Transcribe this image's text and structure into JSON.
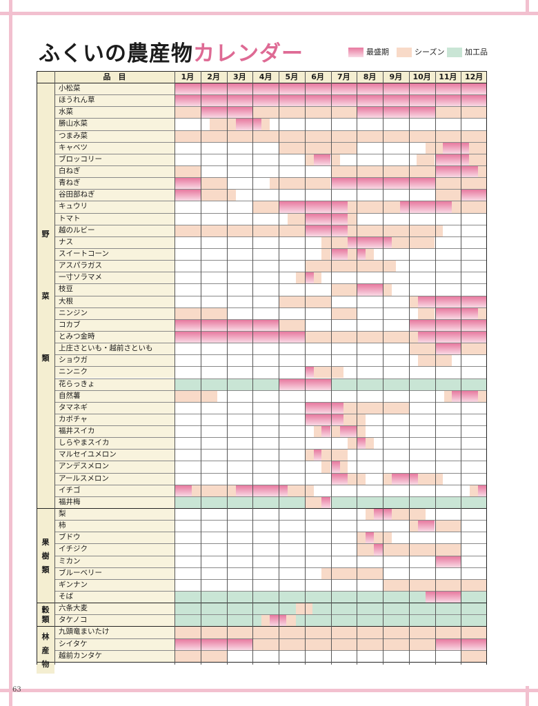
{
  "title": {
    "main": "ふくいの農産物",
    "accent": "カレンダー"
  },
  "legend": [
    {
      "label": "最盛期",
      "kind": "peak"
    },
    {
      "label": "シーズン",
      "kind": "season"
    },
    {
      "label": "加工品",
      "kind": "proc"
    }
  ],
  "header": {
    "item": "品　目",
    "months": [
      "1月",
      "2月",
      "3月",
      "4月",
      "5月",
      "6月",
      "7月",
      "8月",
      "9月",
      "10月",
      "11月",
      "12月"
    ]
  },
  "categories": [
    {
      "label": "野菜類",
      "chars": [
        "野",
        "菜",
        "類"
      ],
      "first_row": 0,
      "last_row": 35
    },
    {
      "label": "果樹類",
      "chars": [
        "果",
        "樹",
        "類"
      ],
      "first_row": 36,
      "last_row": 43
    },
    {
      "label": "穀類",
      "chars": [
        "穀",
        "類"
      ],
      "first_row": 44,
      "last_row": 45
    },
    {
      "label": "林産物",
      "chars": [
        "林",
        "産",
        "物"
      ],
      "first_row": 46,
      "last_row": 49
    }
  ],
  "items": [
    {
      "name": "小松菜",
      "bars": [
        [
          "peak",
          1,
          12.99
        ]
      ]
    },
    {
      "name": "ほうれん草",
      "bars": [
        [
          "peak",
          1,
          12.99
        ]
      ]
    },
    {
      "name": "水菜",
      "bars": [
        [
          "season",
          1,
          2
        ],
        [
          "peak",
          2,
          4
        ],
        [
          "season",
          4,
          8
        ],
        [
          "peak",
          8,
          11
        ],
        [
          "season",
          11,
          12.99
        ]
      ]
    },
    {
      "name": "勝山水菜",
      "bars": [
        [
          "season",
          2.35,
          3.35
        ],
        [
          "peak",
          3.35,
          4.35
        ],
        [
          "season",
          4.35,
          4.65
        ]
      ]
    },
    {
      "name": "つまみ菜",
      "bars": [
        [
          "season",
          1,
          12.99
        ]
      ]
    },
    {
      "name": "キャベツ",
      "bars": [
        [
          "season",
          5,
          8
        ],
        [
          "season",
          10.65,
          11.3
        ],
        [
          "peak",
          11.3,
          12.3
        ],
        [
          "season",
          12.3,
          12.99
        ]
      ]
    },
    {
      "name": "ブロッコリー",
      "bars": [
        [
          "season",
          6,
          6.35
        ],
        [
          "peak",
          6.35,
          7
        ],
        [
          "season",
          7,
          7.35
        ],
        [
          "season",
          10.3,
          11
        ],
        [
          "peak",
          11,
          12.3
        ],
        [
          "season",
          12.3,
          12.99
        ]
      ]
    },
    {
      "name": "白ねぎ",
      "bars": [
        [
          "season",
          1,
          2
        ],
        [
          "season",
          7,
          11
        ],
        [
          "peak",
          11,
          12.65
        ],
        [
          "season",
          12.65,
          12.99
        ]
      ]
    },
    {
      "name": "青ねぎ",
      "bars": [
        [
          "peak",
          1,
          2
        ],
        [
          "season",
          2,
          3
        ],
        [
          "season",
          4.65,
          7
        ],
        [
          "peak",
          7,
          11
        ],
        [
          "season",
          11,
          12.99
        ]
      ]
    },
    {
      "name": "谷田部ねぎ",
      "bars": [
        [
          "peak",
          1,
          2
        ],
        [
          "season",
          2,
          3.35
        ],
        [
          "season",
          11,
          12
        ],
        [
          "peak",
          12,
          12.99
        ]
      ]
    },
    {
      "name": "キュウリ",
      "bars": [
        [
          "season",
          4,
          5
        ],
        [
          "peak",
          5,
          7.65
        ],
        [
          "season",
          7.65,
          9.65
        ],
        [
          "peak",
          9.65,
          11.65
        ],
        [
          "season",
          11.65,
          12.99
        ]
      ]
    },
    {
      "name": "トマト",
      "bars": [
        [
          "season",
          5.35,
          6
        ],
        [
          "peak",
          6,
          7.65
        ],
        [
          "season",
          7.65,
          8
        ]
      ]
    },
    {
      "name": "越のルビー",
      "bars": [
        [
          "season",
          1,
          6
        ],
        [
          "peak",
          6,
          7.65
        ],
        [
          "season",
          7.65,
          11.3
        ]
      ]
    },
    {
      "name": "ナス",
      "bars": [
        [
          "season",
          6.65,
          7.65
        ],
        [
          "peak",
          7.65,
          9.35
        ],
        [
          "season",
          9.35,
          11
        ]
      ]
    },
    {
      "name": "スイートコーン",
      "bars": [
        [
          "season",
          6.65,
          7
        ],
        [
          "peak",
          7,
          7.65
        ],
        [
          "season",
          7.65,
          8
        ],
        [
          "peak",
          8,
          8.35
        ],
        [
          "season",
          8.35,
          8.65
        ]
      ]
    },
    {
      "name": "アスパラガス",
      "bars": [
        [
          "season",
          6,
          9.5
        ]
      ]
    },
    {
      "name": "一寸ソラマメ",
      "bars": [
        [
          "season",
          5.65,
          6
        ],
        [
          "peak",
          6,
          6.35
        ],
        [
          "season",
          6.35,
          6.65
        ]
      ]
    },
    {
      "name": "枝豆",
      "bars": [
        [
          "season",
          7,
          8
        ],
        [
          "peak",
          8,
          9
        ],
        [
          "season",
          9,
          9.35
        ]
      ]
    },
    {
      "name": "大根",
      "bars": [
        [
          "season",
          5,
          7
        ],
        [
          "season",
          10,
          10.35
        ],
        [
          "peak",
          10.35,
          12.99
        ]
      ]
    },
    {
      "name": "ニンジン",
      "bars": [
        [
          "season",
          1,
          3
        ],
        [
          "season",
          7,
          8
        ],
        [
          "season",
          10.35,
          11
        ],
        [
          "peak",
          11,
          12.65
        ],
        [
          "season",
          12.65,
          12.99
        ]
      ]
    },
    {
      "name": "コカブ",
      "bars": [
        [
          "peak",
          1,
          5
        ],
        [
          "season",
          5,
          6
        ],
        [
          "peak",
          10,
          12.99
        ]
      ]
    },
    {
      "name": "とみつ金時",
      "bars": [
        [
          "peak",
          1,
          6
        ],
        [
          "season",
          6,
          10
        ],
        [
          "season",
          10,
          10.35
        ],
        [
          "peak",
          10.35,
          12.99
        ]
      ]
    },
    {
      "name": "上庄さといも・越前さといも",
      "bars": [
        [
          "season",
          10,
          11
        ],
        [
          "peak",
          11,
          12
        ],
        [
          "season",
          12,
          12.99
        ]
      ]
    },
    {
      "name": "ショウガ",
      "bars": [
        [
          "season",
          10.35,
          11.65
        ]
      ]
    },
    {
      "name": "ニンニク",
      "bars": [
        [
          "peak",
          6,
          6.35
        ],
        [
          "season",
          6.35,
          7.5
        ]
      ]
    },
    {
      "name": "花らっきょ",
      "bars": [
        [
          "proc",
          1,
          5
        ],
        [
          "peak",
          5,
          7
        ],
        [
          "proc",
          7,
          12.99
        ]
      ]
    },
    {
      "name": "自然薯",
      "bars": [
        [
          "season",
          1,
          2.65
        ],
        [
          "season",
          11.35,
          11.65
        ],
        [
          "peak",
          11.65,
          12.65
        ],
        [
          "season",
          12.65,
          12.99
        ]
      ]
    },
    {
      "name": "タマネギ",
      "bars": [
        [
          "peak",
          6,
          7.5
        ],
        [
          "season",
          7.5,
          10
        ]
      ]
    },
    {
      "name": "カボチャ",
      "bars": [
        [
          "peak",
          6,
          7.5
        ],
        [
          "season",
          7.5,
          8.35
        ]
      ]
    },
    {
      "name": "福井スイカ",
      "bars": [
        [
          "season",
          6.35,
          6.65
        ],
        [
          "peak",
          6.65,
          7
        ],
        [
          "season",
          7,
          7.35
        ],
        [
          "peak",
          7.35,
          8
        ],
        [
          "season",
          8,
          8.35
        ]
      ]
    },
    {
      "name": "しらやまスイカ",
      "bars": [
        [
          "season",
          7.65,
          8
        ],
        [
          "peak",
          8,
          8.35
        ],
        [
          "season",
          8.35,
          8.65
        ]
      ]
    },
    {
      "name": "マルセイユメロン",
      "bars": [
        [
          "season",
          6,
          6.35
        ],
        [
          "peak",
          6.35,
          6.65
        ],
        [
          "season",
          6.65,
          7.65
        ]
      ]
    },
    {
      "name": "アンデスメロン",
      "bars": [
        [
          "season",
          6.65,
          7
        ],
        [
          "peak",
          7,
          7.35
        ],
        [
          "season",
          7.35,
          7.65
        ]
      ]
    },
    {
      "name": "アールスメロン",
      "bars": [
        [
          "peak",
          7,
          7.65
        ],
        [
          "season",
          7.65,
          8.35
        ],
        [
          "season",
          9,
          9.35
        ],
        [
          "peak",
          9.35,
          10.35
        ],
        [
          "season",
          10.35,
          11.3
        ]
      ]
    },
    {
      "name": "イチゴ",
      "bars": [
        [
          "peak",
          1,
          1.65
        ],
        [
          "season",
          1.65,
          3.35
        ],
        [
          "peak",
          3.35,
          5.35
        ],
        [
          "season",
          5.35,
          6.35
        ],
        [
          "season",
          12.35,
          12.65
        ],
        [
          "peak",
          12.65,
          12.99
        ]
      ]
    },
    {
      "name": "福井梅",
      "bars": [
        [
          "proc",
          1,
          6
        ],
        [
          "season",
          6,
          6.65
        ],
        [
          "peak",
          6.65,
          7
        ],
        [
          "proc",
          7,
          12.99
        ]
      ]
    },
    {
      "name": "梨",
      "bars": [
        [
          "season",
          8.35,
          8.65
        ],
        [
          "peak",
          8.65,
          9.35
        ],
        [
          "season",
          9.35,
          10.65
        ]
      ]
    },
    {
      "name": "柿",
      "bars": [
        [
          "season",
          10,
          10.35
        ],
        [
          "peak",
          10.35,
          11
        ],
        [
          "season",
          11,
          12
        ]
      ]
    },
    {
      "name": "ブドウ",
      "bars": [
        [
          "season",
          8,
          8.35
        ],
        [
          "peak",
          8.35,
          8.65
        ],
        [
          "season",
          8.65,
          9.35
        ]
      ]
    },
    {
      "name": "イチジク",
      "bars": [
        [
          "season",
          8,
          8.65
        ],
        [
          "peak",
          8.65,
          9
        ],
        [
          "season",
          9,
          12
        ]
      ]
    },
    {
      "name": "ミカン",
      "bars": [
        [
          "season",
          11,
          12
        ],
        [
          "peak",
          11,
          12
        ]
      ]
    },
    {
      "name": "ブルーベリー",
      "bars": [
        [
          "season",
          6.65,
          9
        ]
      ]
    },
    {
      "name": "ギンナン",
      "bars": [
        [
          "season",
          9,
          12.99
        ]
      ]
    },
    {
      "name": "そば",
      "bars": [
        [
          "proc",
          1,
          10.65
        ],
        [
          "peak",
          10.65,
          12
        ],
        [
          "proc",
          12,
          12.99
        ]
      ]
    },
    {
      "name": "六条大麦",
      "bars": [
        [
          "proc",
          1,
          5.65
        ],
        [
          "season",
          5.65,
          6.3
        ],
        [
          "proc",
          6.3,
          12.99
        ]
      ]
    },
    {
      "name": "タケノコ",
      "bars": [
        [
          "proc",
          1,
          4.35
        ],
        [
          "season",
          4.35,
          4.65
        ],
        [
          "peak",
          4.65,
          5.3
        ],
        [
          "season",
          5.3,
          5.65
        ],
        [
          "proc",
          5.65,
          12.99
        ]
      ]
    },
    {
      "name": "九頭竜まいたけ",
      "bars": [
        [
          "season",
          1,
          12.99
        ]
      ]
    },
    {
      "name": "シイタケ",
      "bars": [
        [
          "peak",
          1,
          4
        ],
        [
          "season",
          4,
          11
        ],
        [
          "peak",
          11,
          12.99
        ]
      ]
    },
    {
      "name": "越前カンタケ",
      "bars": [
        [
          "season",
          1,
          3
        ],
        [
          "season",
          12,
          12.99
        ]
      ]
    }
  ],
  "page_number": "63"
}
